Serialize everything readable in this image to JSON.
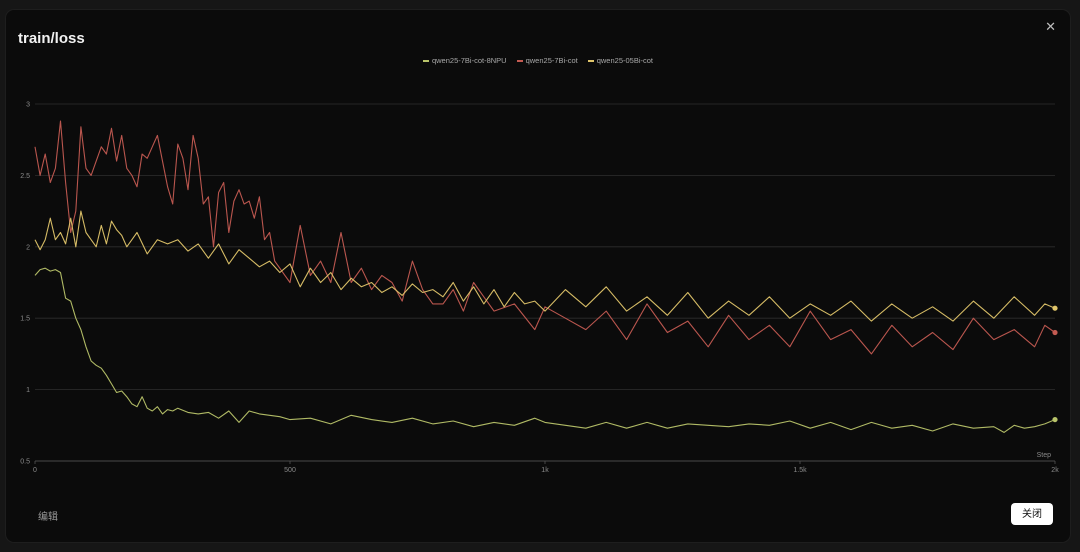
{
  "modal": {
    "title": "train/loss",
    "close_icon": "close-icon",
    "edit_label": "编辑",
    "close_label": "关闭"
  },
  "colors": {
    "background": "#0b0b0b",
    "grid": "#2e2e2e",
    "axis_text": "#8a8a8a"
  },
  "chart_data": {
    "type": "line",
    "title": "train/loss",
    "xlabel": "Step",
    "ylabel": "",
    "xlim": [
      0,
      2000
    ],
    "ylim": [
      0.5,
      3
    ],
    "x_ticks": [
      0,
      500,
      1000,
      1500,
      2000
    ],
    "x_tick_labels": [
      "0",
      "500",
      "1k",
      "1.5k",
      "2k"
    ],
    "y_ticks": [
      0.5,
      1,
      1.5,
      2,
      2.5,
      3
    ],
    "y_tick_labels": [
      "0.5",
      "1",
      "1.5",
      "2",
      "2.5",
      "3"
    ],
    "grid": true,
    "legend_position": "top-center",
    "series": [
      {
        "name": "qwen25-7Bi-cot-8NPU",
        "color": "#b9c46a",
        "x": [
          0,
          10,
          20,
          30,
          40,
          50,
          60,
          70,
          80,
          90,
          100,
          110,
          120,
          130,
          140,
          150,
          160,
          170,
          180,
          190,
          200,
          210,
          220,
          230,
          240,
          250,
          260,
          270,
          280,
          300,
          320,
          340,
          360,
          380,
          400,
          420,
          440,
          460,
          480,
          500,
          540,
          580,
          620,
          660,
          700,
          740,
          780,
          820,
          860,
          900,
          940,
          980,
          1000,
          1040,
          1080,
          1120,
          1160,
          1200,
          1240,
          1280,
          1320,
          1360,
          1400,
          1440,
          1480,
          1520,
          1560,
          1600,
          1640,
          1680,
          1720,
          1760,
          1800,
          1840,
          1880,
          1900,
          1920,
          1940,
          1960,
          1980,
          2000
        ],
        "values": [
          1.8,
          1.84,
          1.85,
          1.83,
          1.84,
          1.82,
          1.64,
          1.62,
          1.5,
          1.42,
          1.3,
          1.2,
          1.17,
          1.15,
          1.1,
          1.04,
          0.98,
          0.99,
          0.95,
          0.9,
          0.88,
          0.95,
          0.87,
          0.85,
          0.88,
          0.83,
          0.86,
          0.85,
          0.87,
          0.84,
          0.83,
          0.84,
          0.8,
          0.85,
          0.77,
          0.85,
          0.83,
          0.82,
          0.81,
          0.79,
          0.8,
          0.76,
          0.82,
          0.79,
          0.77,
          0.8,
          0.76,
          0.78,
          0.74,
          0.77,
          0.75,
          0.8,
          0.77,
          0.75,
          0.73,
          0.77,
          0.73,
          0.77,
          0.73,
          0.76,
          0.75,
          0.74,
          0.76,
          0.75,
          0.78,
          0.73,
          0.77,
          0.72,
          0.77,
          0.73,
          0.75,
          0.71,
          0.76,
          0.73,
          0.74,
          0.7,
          0.75,
          0.73,
          0.74,
          0.76,
          0.79
        ]
      },
      {
        "name": "qwen25-7Bi-cot",
        "color": "#c45b52",
        "x": [
          0,
          10,
          20,
          30,
          40,
          50,
          60,
          70,
          80,
          90,
          100,
          110,
          120,
          130,
          140,
          150,
          160,
          170,
          180,
          190,
          200,
          210,
          220,
          230,
          240,
          250,
          260,
          270,
          280,
          290,
          300,
          310,
          320,
          330,
          340,
          350,
          360,
          370,
          380,
          390,
          400,
          410,
          420,
          430,
          440,
          450,
          460,
          470,
          480,
          490,
          500,
          520,
          540,
          560,
          580,
          600,
          620,
          640,
          660,
          680,
          700,
          720,
          740,
          760,
          780,
          800,
          820,
          840,
          860,
          880,
          900,
          940,
          980,
          1000,
          1040,
          1080,
          1120,
          1160,
          1200,
          1240,
          1280,
          1320,
          1360,
          1400,
          1440,
          1480,
          1520,
          1560,
          1600,
          1640,
          1680,
          1720,
          1760,
          1800,
          1840,
          1880,
          1920,
          1960,
          1980,
          2000
        ],
        "values": [
          2.7,
          2.5,
          2.65,
          2.45,
          2.55,
          2.88,
          2.45,
          2.1,
          2.25,
          2.84,
          2.55,
          2.5,
          2.6,
          2.7,
          2.65,
          2.83,
          2.6,
          2.78,
          2.55,
          2.5,
          2.42,
          2.65,
          2.62,
          2.7,
          2.78,
          2.6,
          2.42,
          2.3,
          2.72,
          2.62,
          2.4,
          2.78,
          2.62,
          2.3,
          2.35,
          2.0,
          2.38,
          2.45,
          2.1,
          2.32,
          2.4,
          2.3,
          2.32,
          2.2,
          2.35,
          2.05,
          2.1,
          1.9,
          1.85,
          1.8,
          1.75,
          2.15,
          1.8,
          1.9,
          1.75,
          2.1,
          1.75,
          1.85,
          1.7,
          1.8,
          1.75,
          1.62,
          1.9,
          1.7,
          1.6,
          1.6,
          1.7,
          1.55,
          1.75,
          1.65,
          1.55,
          1.6,
          1.42,
          1.58,
          1.5,
          1.42,
          1.55,
          1.35,
          1.6,
          1.4,
          1.48,
          1.3,
          1.52,
          1.35,
          1.45,
          1.3,
          1.55,
          1.35,
          1.42,
          1.25,
          1.45,
          1.3,
          1.4,
          1.28,
          1.5,
          1.35,
          1.42,
          1.3,
          1.45,
          1.4
        ]
      },
      {
        "name": "qwen25-05Bi-cot",
        "color": "#e0c56a",
        "x": [
          0,
          10,
          20,
          30,
          40,
          50,
          60,
          70,
          80,
          90,
          100,
          110,
          120,
          130,
          140,
          150,
          160,
          170,
          180,
          190,
          200,
          220,
          240,
          260,
          280,
          300,
          320,
          340,
          360,
          380,
          400,
          420,
          440,
          460,
          480,
          500,
          520,
          540,
          560,
          580,
          600,
          620,
          640,
          660,
          680,
          700,
          720,
          740,
          760,
          780,
          800,
          820,
          840,
          860,
          880,
          900,
          920,
          940,
          960,
          980,
          1000,
          1040,
          1080,
          1120,
          1160,
          1200,
          1240,
          1280,
          1320,
          1360,
          1400,
          1440,
          1480,
          1520,
          1560,
          1600,
          1640,
          1680,
          1720,
          1760,
          1800,
          1840,
          1880,
          1920,
          1960,
          1980,
          2000
        ],
        "values": [
          2.05,
          1.98,
          2.05,
          2.2,
          2.05,
          2.1,
          2.02,
          2.2,
          2.0,
          2.25,
          2.1,
          2.05,
          2.0,
          2.15,
          2.02,
          2.18,
          2.12,
          2.08,
          2.0,
          2.05,
          2.1,
          1.95,
          2.05,
          2.02,
          2.05,
          1.97,
          2.02,
          1.92,
          2.02,
          1.88,
          1.98,
          1.92,
          1.86,
          1.9,
          1.82,
          1.88,
          1.72,
          1.85,
          1.75,
          1.82,
          1.7,
          1.78,
          1.72,
          1.75,
          1.68,
          1.72,
          1.66,
          1.74,
          1.68,
          1.7,
          1.65,
          1.75,
          1.62,
          1.72,
          1.6,
          1.7,
          1.58,
          1.68,
          1.6,
          1.62,
          1.55,
          1.7,
          1.58,
          1.72,
          1.55,
          1.65,
          1.52,
          1.68,
          1.5,
          1.62,
          1.52,
          1.65,
          1.5,
          1.6,
          1.52,
          1.62,
          1.48,
          1.6,
          1.5,
          1.58,
          1.48,
          1.62,
          1.5,
          1.65,
          1.52,
          1.6,
          1.57
        ]
      }
    ]
  }
}
